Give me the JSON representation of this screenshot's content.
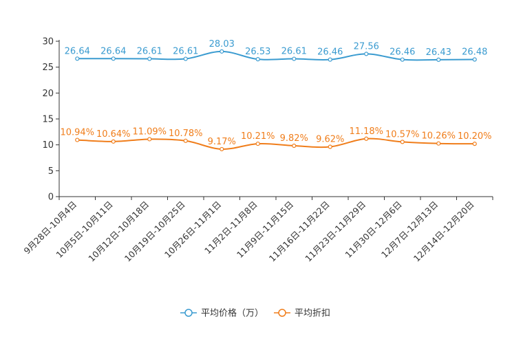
{
  "chart_data": {
    "type": "line",
    "title": "",
    "xlabel": "",
    "ylabel": "",
    "ylim": [
      0,
      30
    ],
    "yticks": [
      0,
      5,
      10,
      15,
      20,
      25,
      30
    ],
    "categories": [
      "9月28日-10月4日",
      "10月5日-10月11日",
      "10月12日-10月18日",
      "10月19日-10月25日",
      "10月26日-11月1日",
      "11月2日-11月8日",
      "11月9日-11月15日",
      "11月16日-11月22日",
      "11月23日-11月29日",
      "11月30日-12月6日",
      "12月7日-12月13日",
      "12月14日-12月20日"
    ],
    "series": [
      {
        "name": "平均价格（万）",
        "color": "#3a9bd0",
        "values": [
          26.64,
          26.64,
          26.61,
          26.61,
          28.03,
          26.53,
          26.61,
          26.46,
          27.56,
          26.46,
          26.43,
          26.48
        ],
        "labels": [
          "26.64",
          "26.64",
          "26.61",
          "26.61",
          "28.03",
          "26.53",
          "26.61",
          "26.46",
          "27.56",
          "26.46",
          "26.43",
          "26.48"
        ]
      },
      {
        "name": "平均折扣",
        "color": "#f07d1a",
        "values": [
          10.94,
          10.64,
          11.09,
          10.78,
          9.17,
          10.21,
          9.82,
          9.62,
          11.18,
          10.57,
          10.26,
          10.2
        ],
        "labels": [
          "10.94%",
          "10.64%",
          "11.09%",
          "10.78%",
          "9.17%",
          "10.21%",
          "9.82%",
          "9.62%",
          "11.18%",
          "10.57%",
          "10.26%",
          "10.20%"
        ]
      }
    ],
    "legend_position": "bottom"
  }
}
